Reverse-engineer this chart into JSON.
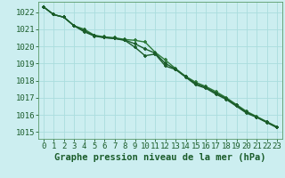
{
  "xlabel": "Graphe pression niveau de la mer (hPa)",
  "bg_color": "#cceef0",
  "grid_color": "#aadddd",
  "line_color1": "#1a5c2a",
  "line_color2": "#2d7a3a",
  "line_color3": "#1a5c2a",
  "marker": "+",
  "xlim": [
    -0.5,
    23.5
  ],
  "ylim": [
    1014.6,
    1022.6
  ],
  "yticks": [
    1015,
    1016,
    1017,
    1018,
    1019,
    1020,
    1021,
    1022
  ],
  "xticks": [
    0,
    1,
    2,
    3,
    4,
    5,
    6,
    7,
    8,
    9,
    10,
    11,
    12,
    13,
    14,
    15,
    16,
    17,
    18,
    19,
    20,
    21,
    22,
    23
  ],
  "series1": [
    1022.3,
    1021.85,
    1021.7,
    1021.2,
    1020.85,
    1020.6,
    1020.5,
    1020.45,
    1020.35,
    1019.95,
    1019.45,
    1019.55,
    1018.85,
    1018.65,
    1018.2,
    1017.75,
    1017.55,
    1017.2,
    1016.9,
    1016.5,
    1016.1,
    1015.85,
    1015.55,
    1015.25
  ],
  "series2": [
    1022.3,
    1021.85,
    1021.7,
    1021.2,
    1021.0,
    1020.65,
    1020.55,
    1020.5,
    1020.4,
    1020.35,
    1020.25,
    1019.65,
    1019.2,
    1018.7,
    1018.25,
    1017.9,
    1017.65,
    1017.35,
    1017.0,
    1016.6,
    1016.2,
    1015.9,
    1015.6,
    1015.3
  ],
  "series3": [
    1022.3,
    1021.85,
    1021.7,
    1021.2,
    1020.92,
    1020.62,
    1020.52,
    1020.47,
    1020.37,
    1020.15,
    1019.85,
    1019.6,
    1019.0,
    1018.67,
    1018.22,
    1017.82,
    1017.6,
    1017.27,
    1016.95,
    1016.55,
    1016.15,
    1015.87,
    1015.57,
    1015.27
  ],
  "tick_fontsize": 6.5,
  "label_fontsize": 7.5,
  "linewidth": 1.0,
  "markersize": 3.5,
  "markeredgewidth": 1.2
}
